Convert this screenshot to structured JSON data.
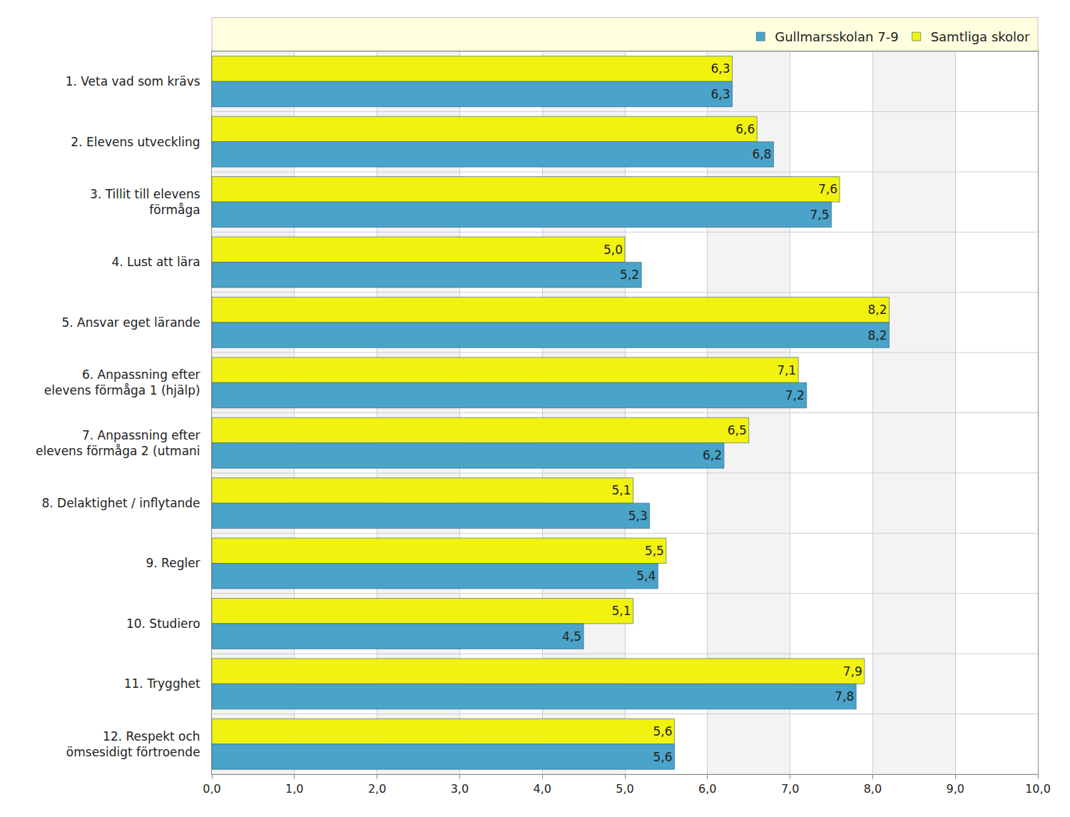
{
  "chart_data": {
    "type": "bar",
    "orientation": "horizontal",
    "categories": [
      "1. Veta vad som krävs",
      "2. Elevens utveckling",
      "3. Tillit till elevens\nförmåga",
      "4. Lust att lära",
      "5. Ansvar eget lärande",
      "6. Anpassning efter\nelevens förmåga 1 (hjälp)",
      "7. Anpassning efter\nelevens förmåga 2 (utmani",
      "8. Delaktighet / inflytande",
      "9. Regler",
      "10. Studiero",
      "11. Trygghet",
      "12. Respekt och\nömsesidigt förtroende"
    ],
    "series": [
      {
        "name": "Gullmarsskolan 7-9",
        "color": "#4aa3c9",
        "values": [
          6.3,
          6.8,
          7.5,
          5.2,
          8.2,
          7.2,
          6.2,
          5.3,
          5.4,
          4.5,
          7.8,
          5.6
        ],
        "value_labels": [
          "6,3",
          "6,8",
          "7,5",
          "5,2",
          "8,2",
          "7,2",
          "6,2",
          "5,3",
          "5,4",
          "4,5",
          "7,8",
          "5,6"
        ]
      },
      {
        "name": "Samtliga skolor",
        "color": "#f2f20f",
        "values": [
          6.3,
          6.6,
          7.6,
          5.0,
          8.2,
          7.1,
          6.5,
          5.1,
          5.5,
          5.1,
          7.9,
          5.6
        ],
        "value_labels": [
          "6,3",
          "6,6",
          "7,6",
          "5,0",
          "8,2",
          "7,1",
          "6,5",
          "5,1",
          "5,5",
          "5,1",
          "7,9",
          "5,6"
        ]
      }
    ],
    "xlim": [
      0,
      10
    ],
    "xticks": [
      {
        "value": 0,
        "label": "0,0"
      },
      {
        "value": 1,
        "label": "1,0"
      },
      {
        "value": 2,
        "label": "2,0"
      },
      {
        "value": 3,
        "label": "3,0"
      },
      {
        "value": 4,
        "label": "4,0"
      },
      {
        "value": 5,
        "label": "5,0"
      },
      {
        "value": 6,
        "label": "6,0"
      },
      {
        "value": 7,
        "label": "7,0"
      },
      {
        "value": 8,
        "label": "8,0"
      },
      {
        "value": 9,
        "label": "9,0"
      },
      {
        "value": 10,
        "label": "10,0"
      }
    ],
    "grid": true,
    "legend": "top right",
    "data_labels": true
  }
}
